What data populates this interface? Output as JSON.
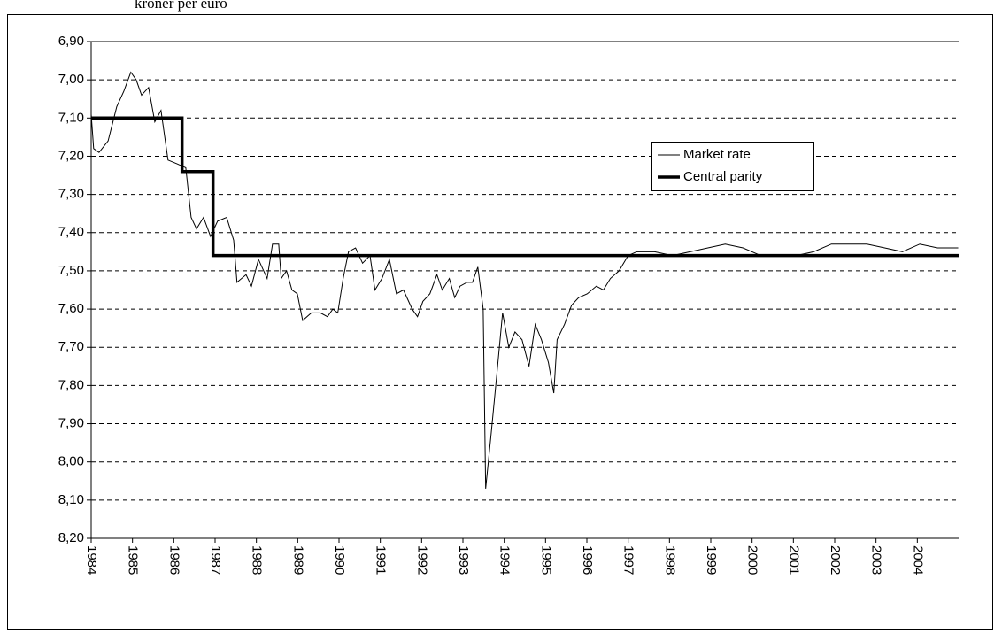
{
  "chart_data": {
    "type": "line",
    "subtitle": "kroner per euro",
    "xlim": [
      1984,
      2005
    ],
    "xticks": [
      1984,
      1985,
      1986,
      1987,
      1988,
      1989,
      1990,
      1991,
      1992,
      1993,
      1994,
      1995,
      1996,
      1997,
      1998,
      1999,
      2000,
      2001,
      2002,
      2003,
      2004
    ],
    "ylim": [
      6.9,
      8.2
    ],
    "y_inverted": true,
    "yticks": [
      {
        "value": 6.9,
        "label": "6,90"
      },
      {
        "value": 7.0,
        "label": "7,00"
      },
      {
        "value": 7.1,
        "label": "7,10"
      },
      {
        "value": 7.2,
        "label": "7,20"
      },
      {
        "value": 7.3,
        "label": "7,30"
      },
      {
        "value": 7.4,
        "label": "7,40"
      },
      {
        "value": 7.5,
        "label": "7,50"
      },
      {
        "value": 7.6,
        "label": "7,60"
      },
      {
        "value": 7.7,
        "label": "7,70"
      },
      {
        "value": 7.8,
        "label": "7,80"
      },
      {
        "value": 7.9,
        "label": "7,90"
      },
      {
        "value": 8.0,
        "label": "8,00"
      },
      {
        "value": 8.1,
        "label": "8,10"
      },
      {
        "value": 8.2,
        "label": "8,20"
      }
    ],
    "grid": true,
    "series": [
      {
        "name": "Market rate",
        "color": "#000000",
        "x": [
          1984.0,
          1984.06,
          1984.19,
          1984.41,
          1984.62,
          1984.79,
          1984.96,
          1985.09,
          1985.22,
          1985.39,
          1985.54,
          1985.69,
          1985.86,
          1986.08,
          1986.29,
          1986.42,
          1986.55,
          1986.72,
          1986.89,
          1987.06,
          1987.28,
          1987.45,
          1987.53,
          1987.75,
          1987.88,
          1988.05,
          1988.26,
          1988.39,
          1988.54,
          1988.6,
          1988.73,
          1988.86,
          1988.99,
          1989.12,
          1989.33,
          1989.55,
          1989.72,
          1989.85,
          1989.97,
          1990.1,
          1990.23,
          1990.4,
          1990.57,
          1990.75,
          1990.87,
          1991.04,
          1991.22,
          1991.39,
          1991.56,
          1991.77,
          1991.9,
          1992.03,
          1992.2,
          1992.37,
          1992.5,
          1992.67,
          1992.8,
          1992.93,
          1993.1,
          1993.23,
          1993.36,
          1993.49,
          1993.55,
          1993.68,
          1993.83,
          1993.96,
          1994.11,
          1994.26,
          1994.43,
          1994.6,
          1994.75,
          1994.9,
          1995.07,
          1995.2,
          1995.28,
          1995.46,
          1995.63,
          1995.8,
          1996.01,
          1996.23,
          1996.4,
          1996.57,
          1996.78,
          1997.0,
          1997.21,
          1997.64,
          1998.07,
          1998.5,
          1998.93,
          1999.35,
          1999.78,
          2000.21,
          2000.64,
          2001.07,
          2001.49,
          2001.92,
          2002.35,
          2002.78,
          2003.21,
          2003.64,
          2004.06,
          2004.49,
          2004.99
        ],
        "values": [
          7.09,
          7.18,
          7.19,
          7.16,
          7.07,
          7.03,
          6.98,
          7.0,
          7.04,
          7.02,
          7.11,
          7.08,
          7.21,
          7.22,
          7.23,
          7.36,
          7.39,
          7.36,
          7.41,
          7.37,
          7.36,
          7.42,
          7.53,
          7.51,
          7.54,
          7.47,
          7.52,
          7.43,
          7.43,
          7.52,
          7.5,
          7.55,
          7.56,
          7.63,
          7.61,
          7.61,
          7.62,
          7.6,
          7.61,
          7.52,
          7.45,
          7.44,
          7.48,
          7.46,
          7.55,
          7.52,
          7.47,
          7.56,
          7.55,
          7.6,
          7.62,
          7.58,
          7.56,
          7.51,
          7.55,
          7.52,
          7.57,
          7.54,
          7.53,
          7.53,
          7.49,
          7.6,
          8.07,
          7.93,
          7.76,
          7.61,
          7.7,
          7.66,
          7.68,
          7.75,
          7.64,
          7.68,
          7.74,
          7.82,
          7.68,
          7.64,
          7.59,
          7.57,
          7.56,
          7.54,
          7.55,
          7.52,
          7.5,
          7.46,
          7.45,
          7.45,
          7.46,
          7.45,
          7.44,
          7.43,
          7.44,
          7.46,
          7.46,
          7.46,
          7.45,
          7.43,
          7.43,
          7.43,
          7.44,
          7.45,
          7.43,
          7.44,
          7.44
        ]
      },
      {
        "name": "Central parity",
        "color": "#000000",
        "x": [
          1984,
          1986.2,
          1986.2,
          1986.95,
          1986.95,
          2005
        ],
        "values": [
          7.1,
          7.1,
          7.24,
          7.24,
          7.46,
          7.46
        ]
      }
    ]
  }
}
